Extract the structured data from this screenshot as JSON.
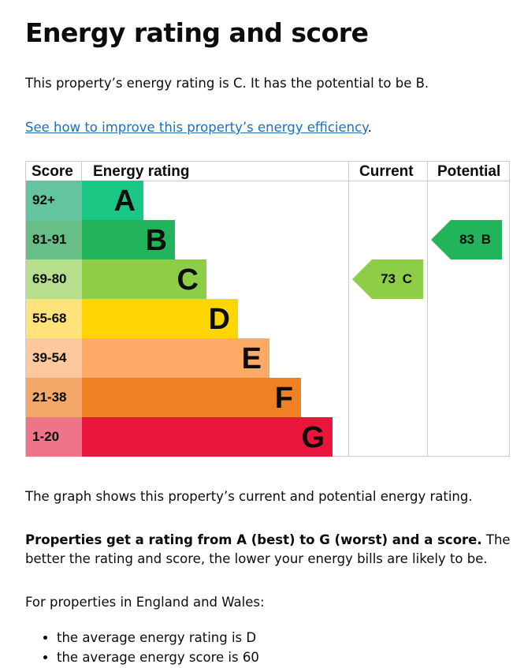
{
  "title": "Energy rating and score",
  "intro": "This property’s energy rating is C. It has the potential to be B.",
  "link": "See how to improve this property’s energy efficiency",
  "link_suffix": ".",
  "table": {
    "headers": {
      "score": "Score",
      "rating": "Energy rating",
      "current": "Current",
      "potential": "Potential"
    },
    "rows": [
      {
        "score": "92+",
        "band": "A",
        "bar": "#1bc785",
        "light": "#63c4a0"
      },
      {
        "score": "81-91",
        "band": "B",
        "bar": "#22b45a",
        "light": "#67be86"
      },
      {
        "score": "69-80",
        "band": "C",
        "bar": "#8dce46",
        "light": "#b6de8c"
      },
      {
        "score": "55-68",
        "band": "D",
        "bar": "#ffd500",
        "light": "#ffe27a"
      },
      {
        "score": "39-54",
        "band": "E",
        "bar": "#fcaa65",
        "light": "#fdc89c"
      },
      {
        "score": "21-38",
        "band": "F",
        "bar": "#ef8023",
        "light": "#f3a768"
      },
      {
        "score": "1-20",
        "band": "G",
        "bar": "#e9153b",
        "light": "#f07489"
      }
    ],
    "current": {
      "label": "73 C",
      "color": "#8dce46"
    },
    "potential": {
      "label": "83 B",
      "color": "#22b45a"
    }
  },
  "graph_text": "The graph shows this property’s current and potential energy rating.",
  "bold_text": "Properties get a rating from A (best) to G (worst) and a score.",
  "rest_text": " The better the rating and score, the lower your energy bills are likely to be.",
  "region_text": "For properties in England and Wales:",
  "bullets": [
    "the average energy rating is D",
    "the average energy score is 60"
  ]
}
